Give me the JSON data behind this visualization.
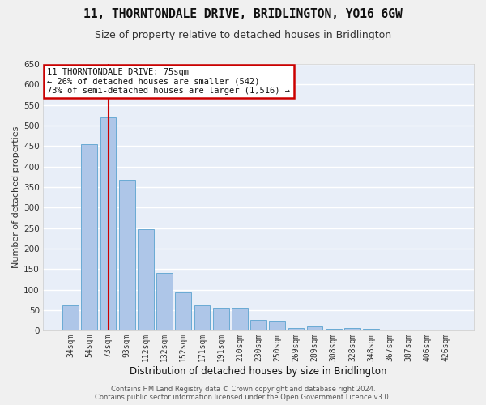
{
  "title": "11, THORNTONDALE DRIVE, BRIDLINGTON, YO16 6GW",
  "subtitle": "Size of property relative to detached houses in Bridlington",
  "xlabel": "Distribution of detached houses by size in Bridlington",
  "ylabel": "Number of detached properties",
  "categories": [
    "34sqm",
    "54sqm",
    "73sqm",
    "93sqm",
    "112sqm",
    "132sqm",
    "152sqm",
    "171sqm",
    "191sqm",
    "210sqm",
    "230sqm",
    "250sqm",
    "269sqm",
    "289sqm",
    "308sqm",
    "328sqm",
    "348sqm",
    "367sqm",
    "387sqm",
    "406sqm",
    "426sqm"
  ],
  "values": [
    62,
    455,
    520,
    367,
    247,
    140,
    93,
    62,
    57,
    57,
    27,
    25,
    7,
    10,
    5,
    7,
    5,
    3,
    3,
    2,
    2
  ],
  "bar_color": "#aec6e8",
  "bar_edge_color": "#6aaad4",
  "reference_line_index": 2,
  "reference_line_color": "#cc0000",
  "ylim_max": 650,
  "yticks": [
    0,
    50,
    100,
    150,
    200,
    250,
    300,
    350,
    400,
    450,
    500,
    550,
    600,
    650
  ],
  "annotation_line1": "11 THORNTONDALE DRIVE: 75sqm",
  "annotation_line2": "← 26% of detached houses are smaller (542)",
  "annotation_line3": "73% of semi-detached houses are larger (1,516) →",
  "annotation_border_color": "#cc0000",
  "plot_bg_color": "#e8eef8",
  "fig_bg_color": "#f0f0f0",
  "grid_color": "#ffffff",
  "footer_line1": "Contains HM Land Registry data © Crown copyright and database right 2024.",
  "footer_line2": "Contains public sector information licensed under the Open Government Licence v3.0."
}
